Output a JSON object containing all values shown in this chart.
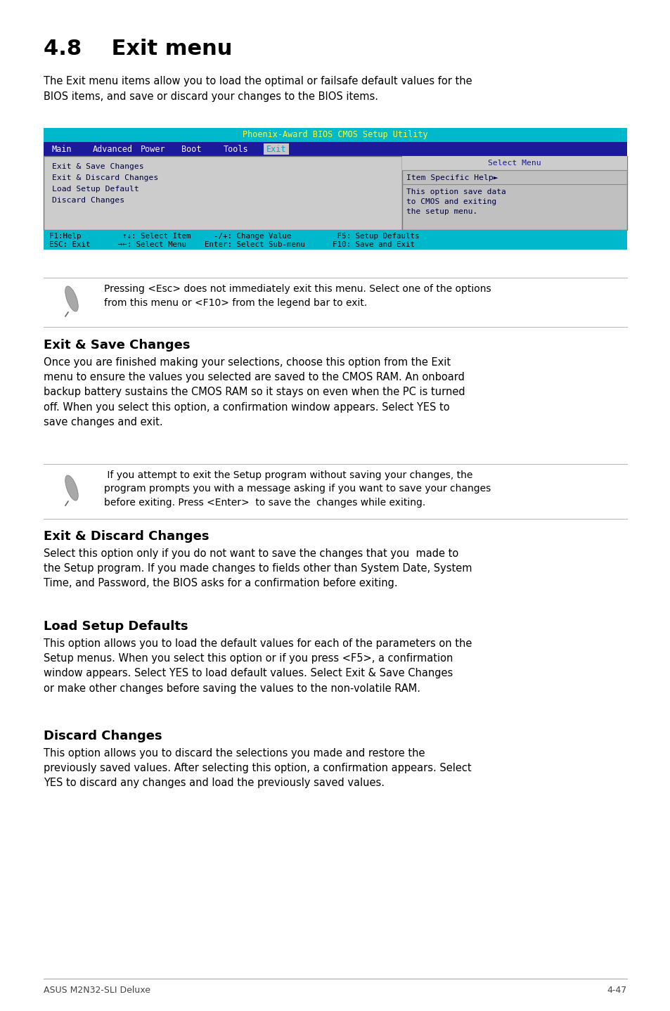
{
  "title": "4.8    Exit menu",
  "intro": "The Exit menu items allow you to load the optimal or failsafe default values for the\nBIOS items, and save or discard your changes to the BIOS items.",
  "bios_title": "Phoenix-Award BIOS CMOS Setup Utility",
  "bios_menu_items": [
    "Main",
    "Advanced",
    "Power",
    "Boot",
    "Tools",
    "Exit"
  ],
  "bios_active": "Exit",
  "bios_left_items": [
    "Exit & Save Changes",
    "Exit & Discard Changes",
    "Load Setup Default",
    "Discard Changes"
  ],
  "bios_right_top": "Select Menu",
  "bios_right_mid": "Item Specific Help►",
  "bios_right_bottom": "This option save data\nto CMOS and exiting\nthe setup menu.",
  "bios_status_line1": "F1:Help         ↑↓: Select Item     -/+: Change Value          F5: Setup Defaults",
  "bios_status_line2": "ESC: Exit      →←: Select Menu    Enter: Select Sub-menu      F10: Save and Exit",
  "note1": "Pressing <Esc> does not immediately exit this menu. Select one of the options\nfrom this menu or <F10> from the legend bar to exit.",
  "section1_title": "Exit & Save Changes",
  "section1_body": "Once you are finished making your selections, choose this option from the Exit\nmenu to ensure the values you selected are saved to the CMOS RAM. An onboard\nbackup battery sustains the CMOS RAM so it stays on even when the PC is turned\noff. When you select this option, a confirmation window appears. Select YES to\nsave changes and exit.",
  "note2": " If you attempt to exit the Setup program without saving your changes, the\nprogram prompts you with a message asking if you want to save your changes\nbefore exiting. Press <Enter>  to save the  changes while exiting.",
  "section2_title": "Exit & Discard Changes",
  "section2_body": "Select this option only if you do not want to save the changes that you  made to\nthe Setup program. If you made changes to fields other than System Date, System\nTime, and Password, the BIOS asks for a confirmation before exiting.",
  "section3_title": "Load Setup Defaults",
  "section3_body": "This option allows you to load the default values for each of the parameters on the\nSetup menus. When you select this option or if you press <F5>, a confirmation\nwindow appears. Select YES to load default values. Select Exit & Save Changes\nor make other changes before saving the values to the non-volatile RAM.",
  "section4_title": "Discard Changes",
  "section4_body": "This option allows you to discard the selections you made and restore the\npreviously saved values. After selecting this option, a confirmation appears. Select\nYES to discard any changes and load the previously saved values.",
  "footer_left": "ASUS M2N32-SLI Deluxe",
  "footer_right": "4-47",
  "bg_color": "#ffffff",
  "bios_header_bg": "#00b8cc",
  "bios_nav_bg": "#1a1a9a",
  "bios_nav_text": "#ffffff",
  "bios_active_bg": "#c8c8c8",
  "bios_active_text": "#00aacc",
  "bios_body_bg": "#cccccc",
  "bios_body_text": "#000044",
  "bios_right_bg": "#c0c0c0",
  "bios_status_bg": "#00b8cc",
  "bios_status_text": "#000000",
  "bios_right_top_text": "#1a1a9a",
  "bios_right_mid_text": "#000044",
  "bios_header_text": "#ffff44"
}
